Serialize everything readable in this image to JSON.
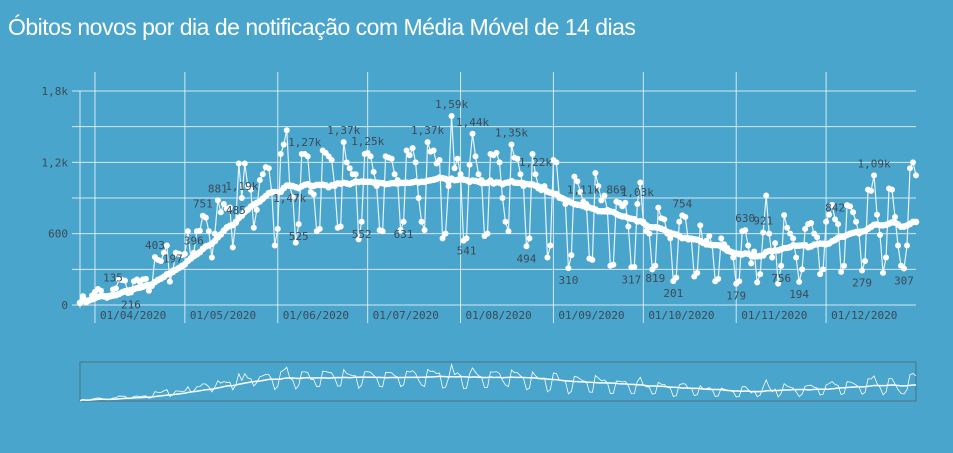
{
  "title": "Óbitos novos por dia de notificação com Média Móvel de 14 dias",
  "chart_data": {
    "type": "line",
    "title": "Óbitos novos por dia de notificação com Média Móvel de 14 dias",
    "start_date": "2020-03-27",
    "end_date": "2020-12-31",
    "moving_average_window": 14,
    "ylim": [
      0,
      1800
    ],
    "y_ticks": [
      {
        "value": 0,
        "label": "0"
      },
      {
        "value": 600,
        "label": "600"
      },
      {
        "value": 1200,
        "label": "1,2k"
      },
      {
        "value": 1800,
        "label": "1,8k"
      }
    ],
    "y_grid": [
      0,
      300,
      600,
      900,
      1200,
      1500,
      1800
    ],
    "x_ticks": [
      {
        "day": 5,
        "label": "01/04/2020"
      },
      {
        "day": 35,
        "label": "01/05/2020"
      },
      {
        "day": 66,
        "label": "01/06/2020"
      },
      {
        "day": 96,
        "label": "01/07/2020"
      },
      {
        "day": 127,
        "label": "01/08/2020"
      },
      {
        "day": 158,
        "label": "01/09/2020"
      },
      {
        "day": 188,
        "label": "01/10/2020"
      },
      {
        "day": 219,
        "label": "01/11/2020"
      },
      {
        "day": 249,
        "label": "01/12/2020"
      }
    ],
    "series": [
      {
        "name": "Óbitos novos",
        "values": [
          18,
          75,
          20,
          40,
          80,
          110,
          135,
          120,
          70,
          60,
          80,
          130,
          140,
          216,
          210,
          205,
          100,
          105,
          200,
          215,
          190,
          216,
          220,
          120,
          160,
          403,
          380,
          370,
          440,
          500,
          197,
          290,
          440,
          430,
          420,
          430,
          620,
          396,
          440,
          620,
          625,
          751,
          735,
          620,
          400,
          600,
          881,
          780,
          850,
          810,
          820,
          485,
          700,
          1190,
          900,
          1190,
          1000,
          970,
          650,
          800,
          1050,
          1100,
          1160,
          1150,
          950,
          500,
          640,
          1270,
          1350,
          1470,
          1000,
          910,
          525,
          680,
          1270,
          1270,
          1250,
          950,
          930,
          620,
          640,
          1300,
          1280,
          1250,
          1220,
          1000,
          650,
          660,
          1370,
          1200,
          1150,
          1100,
          1100,
          552,
          700,
          1270,
          1280,
          1250,
          1120,
          1000,
          630,
          620,
          1250,
          1240,
          1230,
          1100,
          1050,
          631,
          700,
          1300,
          1260,
          1320,
          1200,
          900,
          700,
          630,
          1370,
          1290,
          1300,
          1190,
          1220,
          560,
          600,
          1000,
          1590,
          1150,
          1230,
          1100,
          541,
          560,
          1180,
          1440,
          1250,
          1100,
          1050,
          580,
          600,
          1270,
          1260,
          1280,
          1200,
          900,
          700,
          620,
          1350,
          1240,
          1230,
          1100,
          1000,
          494,
          560,
          1270,
          1100,
          1000,
          990,
          1000,
          400,
          500,
          1220,
          1200,
          900,
          900,
          850,
          310,
          420,
          1080,
          1040,
          950,
          870,
          850,
          390,
          380,
          1110,
          1000,
          880,
          920,
          800,
          330,
          340,
          869,
          860,
          830,
          860,
          660,
          317,
          320,
          850,
          1030,
          700,
          620,
          600,
          300,
          330,
          819,
          730,
          720,
          600,
          560,
          201,
          230,
          700,
          754,
          740,
          550,
          560,
          240,
          270,
          670,
          520,
          540,
          580,
          500,
          200,
          220,
          560,
          510,
          480,
          450,
          400,
          179,
          200,
          620,
          630,
          500,
          350,
          450,
          190,
          260,
          610,
          921,
          600,
          400,
          520,
          180,
          330,
          756,
          650,
          600,
          560,
          400,
          194,
          300,
          640,
          680,
          690,
          600,
          570,
          260,
          300,
          700,
          760,
          842,
          720,
          680,
          279,
          330,
          840,
          830,
          780,
          700,
          600,
          290,
          370,
          970,
          960,
          1090,
          760,
          590,
          270,
          400,
          980,
          970,
          740,
          500,
          330,
          307,
          500,
          1150,
          1200,
          1090
        ]
      },
      {
        "name": "Média Móvel 14 dias",
        "derived_from": "Óbitos novos"
      }
    ],
    "annotations": [
      {
        "day": 11,
        "label": "135"
      },
      {
        "day": 17,
        "label": "216"
      },
      {
        "day": 25,
        "label": "403"
      },
      {
        "day": 31,
        "label": "197"
      },
      {
        "day": 41,
        "label": "751"
      },
      {
        "day": 38,
        "label": "396"
      },
      {
        "day": 46,
        "label": "881"
      },
      {
        "day": 52,
        "label": "485"
      },
      {
        "day": 54,
        "label": "1,19k"
      },
      {
        "day": 70,
        "label": "1,47k"
      },
      {
        "day": 73,
        "label": "525"
      },
      {
        "day": 75,
        "label": "1,27k"
      },
      {
        "day": 88,
        "label": "1,37k"
      },
      {
        "day": 94,
        "label": "552"
      },
      {
        "day": 96,
        "label": "1,25k"
      },
      {
        "day": 108,
        "label": "631"
      },
      {
        "day": 116,
        "label": "1,37k"
      },
      {
        "day": 124,
        "label": "1,59k"
      },
      {
        "day": 129,
        "label": "541"
      },
      {
        "day": 131,
        "label": "1,44k"
      },
      {
        "day": 144,
        "label": "1,35k"
      },
      {
        "day": 149,
        "label": "494"
      },
      {
        "day": 152,
        "label": "1,22k"
      },
      {
        "day": 163,
        "label": "310"
      },
      {
        "day": 168,
        "label": "1,11k"
      },
      {
        "day": 179,
        "label": "869"
      },
      {
        "day": 184,
        "label": "317"
      },
      {
        "day": 186,
        "label": "1,03k"
      },
      {
        "day": 192,
        "label": "819"
      },
      {
        "day": 198,
        "label": "201"
      },
      {
        "day": 201,
        "label": "754"
      },
      {
        "day": 219,
        "label": "179"
      },
      {
        "day": 222,
        "label": "630"
      },
      {
        "day": 228,
        "label": "921"
      },
      {
        "day": 234,
        "label": "756"
      },
      {
        "day": 240,
        "label": "194"
      },
      {
        "day": 252,
        "label": "842"
      },
      {
        "day": 261,
        "label": "279"
      },
      {
        "day": 265,
        "label": "1,09k"
      },
      {
        "day": 275,
        "label": "307"
      }
    ]
  },
  "colors": {
    "background": "#4aa5cd",
    "line": "#ffffff",
    "text": "#3d4a55"
  }
}
